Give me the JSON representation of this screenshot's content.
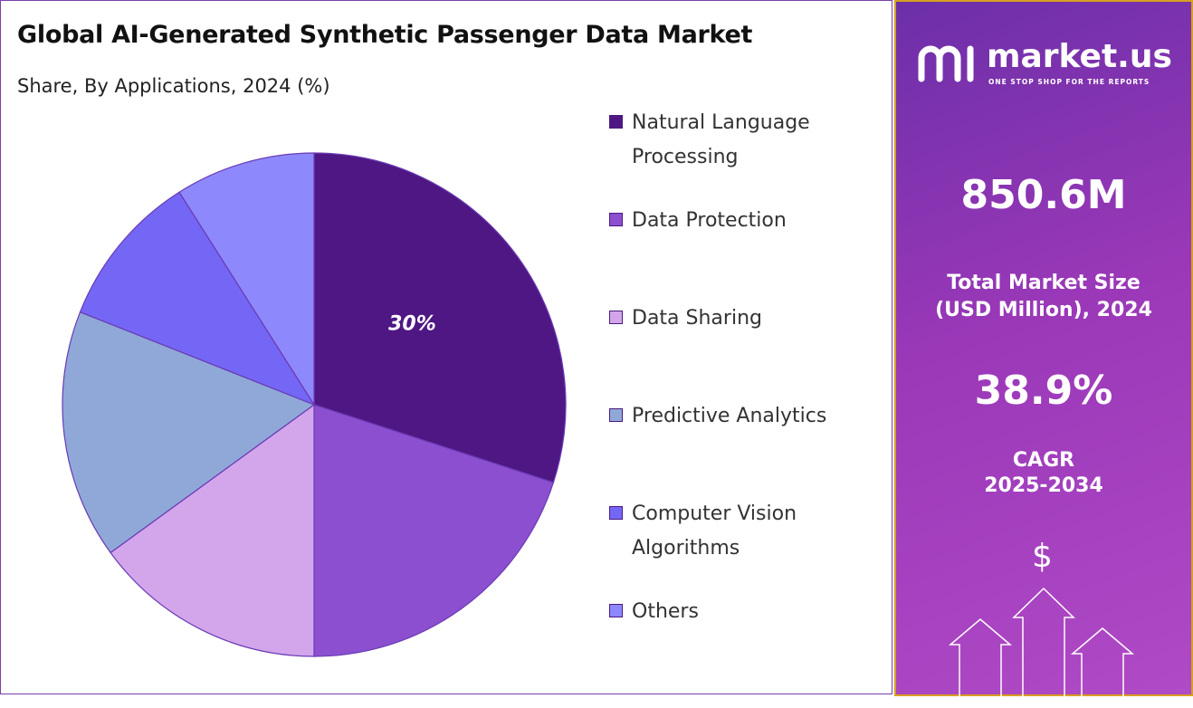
{
  "chart_data": {
    "type": "pie",
    "title": "Global AI-Generated Synthetic Passenger Data Market",
    "subtitle": "Share, By Applications, 2024 (%)",
    "categories": [
      "Natural Language Processing",
      "Data Protection",
      "Data Sharing",
      "Predictive Analytics",
      "Computer Vision Algorithms",
      "Others"
    ],
    "values": [
      30,
      20,
      15,
      16,
      10,
      9
    ],
    "colors": [
      "#4f1783",
      "#8b4fd0",
      "#d3a6ec",
      "#8fa8d8",
      "#7567f5",
      "#8d88fb"
    ],
    "data_labels": [
      "30%",
      "",
      "",
      "",
      "",
      ""
    ],
    "legend_position": "right"
  },
  "sidebar": {
    "brand": "market.us",
    "tagline": "ONE STOP SHOP FOR THE REPORTS",
    "market_size": "850.6M",
    "market_size_label_1": "Total Market Size",
    "market_size_label_2": "(USD Million), 2024",
    "cagr": "38.9%",
    "cagr_label_1": "CAGR",
    "cagr_label_2": "2025-2034",
    "dollar": "$"
  }
}
